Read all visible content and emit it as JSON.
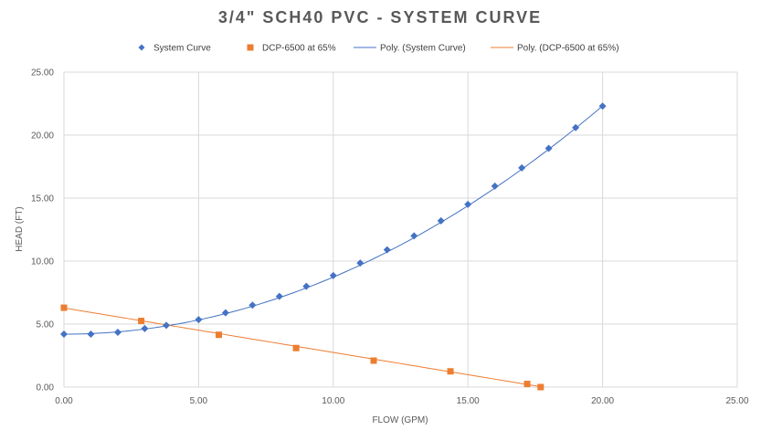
{
  "chart_data": {
    "type": "scatter",
    "title": "3/4\" SCH40 PVC - SYSTEM CURVE",
    "xlabel": "FLOW (GPM)",
    "ylabel": "HEAD (FT)",
    "xlim": [
      0,
      25
    ],
    "ylim": [
      0,
      25
    ],
    "x_ticks": [
      "0.00",
      "5.00",
      "10.00",
      "15.00",
      "20.00",
      "25.00"
    ],
    "y_ticks": [
      "0.00",
      "5.00",
      "10.00",
      "15.00",
      "20.00",
      "25.00"
    ],
    "grid": "vertical and horizontal major gridlines",
    "legend_position": "top",
    "legend": [
      {
        "label": "System Curve",
        "marker": "diamond",
        "color": "#4472C4"
      },
      {
        "label": "DCP-6500 at 65%",
        "marker": "square",
        "color": "#ED7D31"
      },
      {
        "label": "Poly. (System Curve)",
        "marker": "line",
        "color": "#4472C4"
      },
      {
        "label": "Poly. (DCP-6500 at 65%)",
        "marker": "line",
        "color": "#ED7D31"
      }
    ],
    "series": [
      {
        "name": "System Curve",
        "color": "#4472C4",
        "marker": "diamond",
        "x": [
          0,
          1,
          2,
          3,
          3.8,
          5,
          6,
          7,
          8,
          9,
          10,
          11,
          12,
          13,
          14,
          15,
          16,
          17,
          18,
          19,
          20
        ],
        "y": [
          4.2,
          4.2,
          4.35,
          4.65,
          4.9,
          5.35,
          5.9,
          6.5,
          7.2,
          8.0,
          8.85,
          9.85,
          10.9,
          12.0,
          13.2,
          14.5,
          15.95,
          17.4,
          18.95,
          20.6,
          22.3
        ]
      },
      {
        "name": "DCP-6500 at 65%",
        "color": "#ED7D31",
        "marker": "square",
        "x": [
          0,
          2.87,
          5.75,
          8.62,
          11.5,
          14.35,
          17.2,
          17.7
        ],
        "y": [
          6.3,
          5.25,
          4.15,
          3.1,
          2.1,
          1.25,
          0.25,
          0.0
        ]
      }
    ],
    "trendlines": [
      {
        "name": "Poly. (System Curve)",
        "color": "#4472C4",
        "type": "polynomial",
        "coefficients": [
          4.2,
          0.0,
          0.0453
        ],
        "x_range": [
          0,
          20
        ]
      },
      {
        "name": "Poly. (DCP-6500 at 65%)",
        "color": "#ED7D31",
        "type": "polynomial",
        "coefficients": [
          6.28,
          -0.353,
          0.0
        ],
        "x_range": [
          0,
          17.7
        ]
      }
    ]
  }
}
